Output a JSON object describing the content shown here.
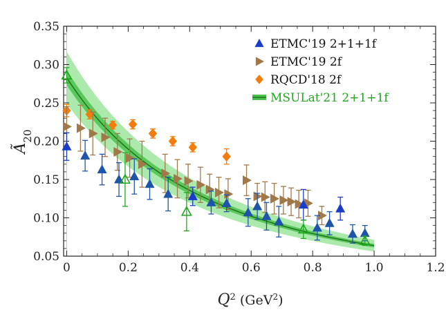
{
  "chart_data": {
    "type": "scatter",
    "xlabel": {
      "main": "Q",
      "sup": "2",
      "unit_open": " (GeV",
      "unit_sup": "2",
      "unit_close": ")"
    },
    "ylabel": {
      "main": "Ã",
      "sub": "20"
    },
    "xlim": [
      -0.01,
      1.2
    ],
    "ylim": [
      0.05,
      0.35
    ],
    "xticks": [
      "0",
      "0.2",
      "0.4",
      "0.6",
      "0.8",
      "1.0",
      "1.2"
    ],
    "xtick_values": [
      0,
      0.2,
      0.4,
      0.6,
      0.8,
      1.0,
      1.2
    ],
    "yticks": [
      "0.05",
      "0.10",
      "0.15",
      "0.20",
      "0.25",
      "0.30",
      "0.35"
    ],
    "ytick_values": [
      0.05,
      0.1,
      0.15,
      0.2,
      0.25,
      0.3,
      0.35
    ],
    "grid": false,
    "legend_position": "top-right",
    "series": [
      {
        "name": "ETMC'19 2+1+1f",
        "marker": "triangle-up",
        "color": "#1a3cc8",
        "color2": "#1f55a8",
        "points": [
          {
            "x": 0.0,
            "y": 0.193,
            "err": 0.018,
            "c": 1
          },
          {
            "x": 0.06,
            "y": 0.181,
            "err": 0.02,
            "c": 2
          },
          {
            "x": 0.115,
            "y": 0.163,
            "err": 0.02,
            "c": 2
          },
          {
            "x": 0.17,
            "y": 0.15,
            "err": 0.022,
            "c": 2
          },
          {
            "x": 0.22,
            "y": 0.154,
            "err": 0.023,
            "c": 2
          },
          {
            "x": 0.27,
            "y": 0.144,
            "err": 0.02,
            "c": 2
          },
          {
            "x": 0.33,
            "y": 0.131,
            "err": 0.022,
            "c": 2
          },
          {
            "x": 0.41,
            "y": 0.128,
            "err": 0.012,
            "c": 1
          },
          {
            "x": 0.47,
            "y": 0.12,
            "err": 0.015,
            "c": 2
          },
          {
            "x": 0.52,
            "y": 0.119,
            "err": 0.011,
            "c": 2
          },
          {
            "x": 0.59,
            "y": 0.107,
            "err": 0.018,
            "c": 2
          },
          {
            "x": 0.62,
            "y": 0.115,
            "err": 0.017,
            "c": 2
          },
          {
            "x": 0.65,
            "y": 0.102,
            "err": 0.018,
            "c": 2
          },
          {
            "x": 0.69,
            "y": 0.095,
            "err": 0.02,
            "c": 2
          },
          {
            "x": 0.77,
            "y": 0.117,
            "err": 0.02,
            "c": 1
          },
          {
            "x": 0.815,
            "y": 0.087,
            "err": 0.016,
            "c": 2
          },
          {
            "x": 0.855,
            "y": 0.093,
            "err": 0.015,
            "c": 2
          },
          {
            "x": 0.89,
            "y": 0.112,
            "err": 0.015,
            "c": 1
          },
          {
            "x": 0.93,
            "y": 0.079,
            "err": 0.012,
            "c": 2
          },
          {
            "x": 0.97,
            "y": 0.08,
            "err": 0.01,
            "c": 2
          }
        ]
      },
      {
        "name": "ETMC'19 2f",
        "marker": "triangle-right",
        "color": "#a0784a",
        "points": [
          {
            "x": 0.0,
            "y": 0.219,
            "err": 0.026
          },
          {
            "x": 0.045,
            "y": 0.217,
            "err": 0.03
          },
          {
            "x": 0.085,
            "y": 0.21,
            "err": 0.028
          },
          {
            "x": 0.125,
            "y": 0.205,
            "err": 0.025
          },
          {
            "x": 0.165,
            "y": 0.186,
            "err": 0.024
          },
          {
            "x": 0.205,
            "y": 0.178,
            "err": 0.025
          },
          {
            "x": 0.245,
            "y": 0.17,
            "err": 0.03
          },
          {
            "x": 0.32,
            "y": 0.158,
            "err": 0.025
          },
          {
            "x": 0.36,
            "y": 0.151,
            "err": 0.025
          },
          {
            "x": 0.395,
            "y": 0.148,
            "err": 0.022
          },
          {
            "x": 0.435,
            "y": 0.143,
            "err": 0.023
          },
          {
            "x": 0.465,
            "y": 0.137,
            "err": 0.02
          },
          {
            "x": 0.495,
            "y": 0.133,
            "err": 0.02
          },
          {
            "x": 0.525,
            "y": 0.131,
            "err": 0.02
          },
          {
            "x": 0.585,
            "y": 0.149,
            "err": 0.02
          },
          {
            "x": 0.62,
            "y": 0.128,
            "err": 0.017
          },
          {
            "x": 0.645,
            "y": 0.127,
            "err": 0.02
          },
          {
            "x": 0.675,
            "y": 0.125,
            "err": 0.02
          },
          {
            "x": 0.705,
            "y": 0.123,
            "err": 0.018
          },
          {
            "x": 0.73,
            "y": 0.121,
            "err": 0.018
          },
          {
            "x": 0.755,
            "y": 0.118,
            "err": 0.018
          },
          {
            "x": 0.785,
            "y": 0.119,
            "err": 0.017
          },
          {
            "x": 0.83,
            "y": 0.103,
            "err": 0.012
          }
        ]
      },
      {
        "name": "RQCD'18 2f",
        "marker": "diamond",
        "color": "#f27c0c",
        "points": [
          {
            "x": 0.0,
            "y": 0.24,
            "err": 0.008
          },
          {
            "x": 0.075,
            "y": 0.235,
            "err": 0.006
          },
          {
            "x": 0.15,
            "y": 0.221,
            "err": 0.005
          },
          {
            "x": 0.215,
            "y": 0.222,
            "err": 0.006
          },
          {
            "x": 0.28,
            "y": 0.21,
            "err": 0.006
          },
          {
            "x": 0.345,
            "y": 0.2,
            "err": 0.006
          },
          {
            "x": 0.41,
            "y": 0.192,
            "err": 0.006
          },
          {
            "x": 0.52,
            "y": 0.18,
            "err": 0.01
          }
        ]
      },
      {
        "name": "MSULat'21 2+1+1f",
        "marker": "triangle-up-open",
        "color": "#1fa81f",
        "fit": {
          "a0": 0.283,
          "mass": 0.95,
          "band_inner": 0.035,
          "band_outer": 0.12
        },
        "points": [
          {
            "x": 0.0,
            "y": 0.286,
            "err": 0.01
          },
          {
            "x": 0.19,
            "y": 0.15,
            "err": 0.035
          },
          {
            "x": 0.39,
            "y": 0.108,
            "err": 0.025
          },
          {
            "x": 0.77,
            "y": 0.085,
            "err": 0.012
          },
          {
            "x": 0.97,
            "y": 0.07,
            "err": 0.006
          }
        ]
      }
    ]
  }
}
